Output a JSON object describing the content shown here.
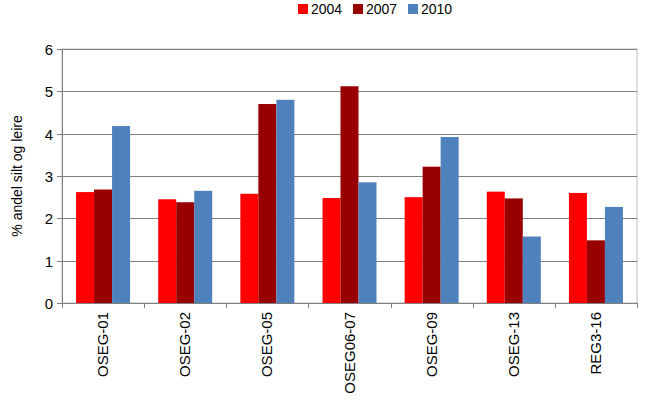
{
  "chart_data": {
    "type": "bar",
    "y_label": "% andel silt og leire",
    "categories": [
      "OSEG-01",
      "OSEG-02",
      "OSEG-05",
      "OSEG06-07",
      "OSEG-09",
      "OSEG-13",
      "REG3-16"
    ],
    "series": [
      {
        "name": "2004",
        "color": "#ff0000",
        "values": [
          2.62,
          2.45,
          2.58,
          2.48,
          2.5,
          2.63,
          2.6
        ]
      },
      {
        "name": "2007",
        "color": "#990000",
        "values": [
          2.68,
          2.38,
          4.7,
          5.12,
          3.22,
          2.47,
          1.48
        ]
      },
      {
        "name": "2010",
        "color": "#4f81bd",
        "values": [
          4.18,
          2.65,
          4.8,
          2.85,
          3.92,
          1.57,
          2.27
        ]
      }
    ],
    "ylim": [
      0,
      6
    ],
    "yticks": [
      0,
      1,
      2,
      3,
      4,
      5,
      6
    ],
    "grid": true,
    "legend": "top"
  }
}
